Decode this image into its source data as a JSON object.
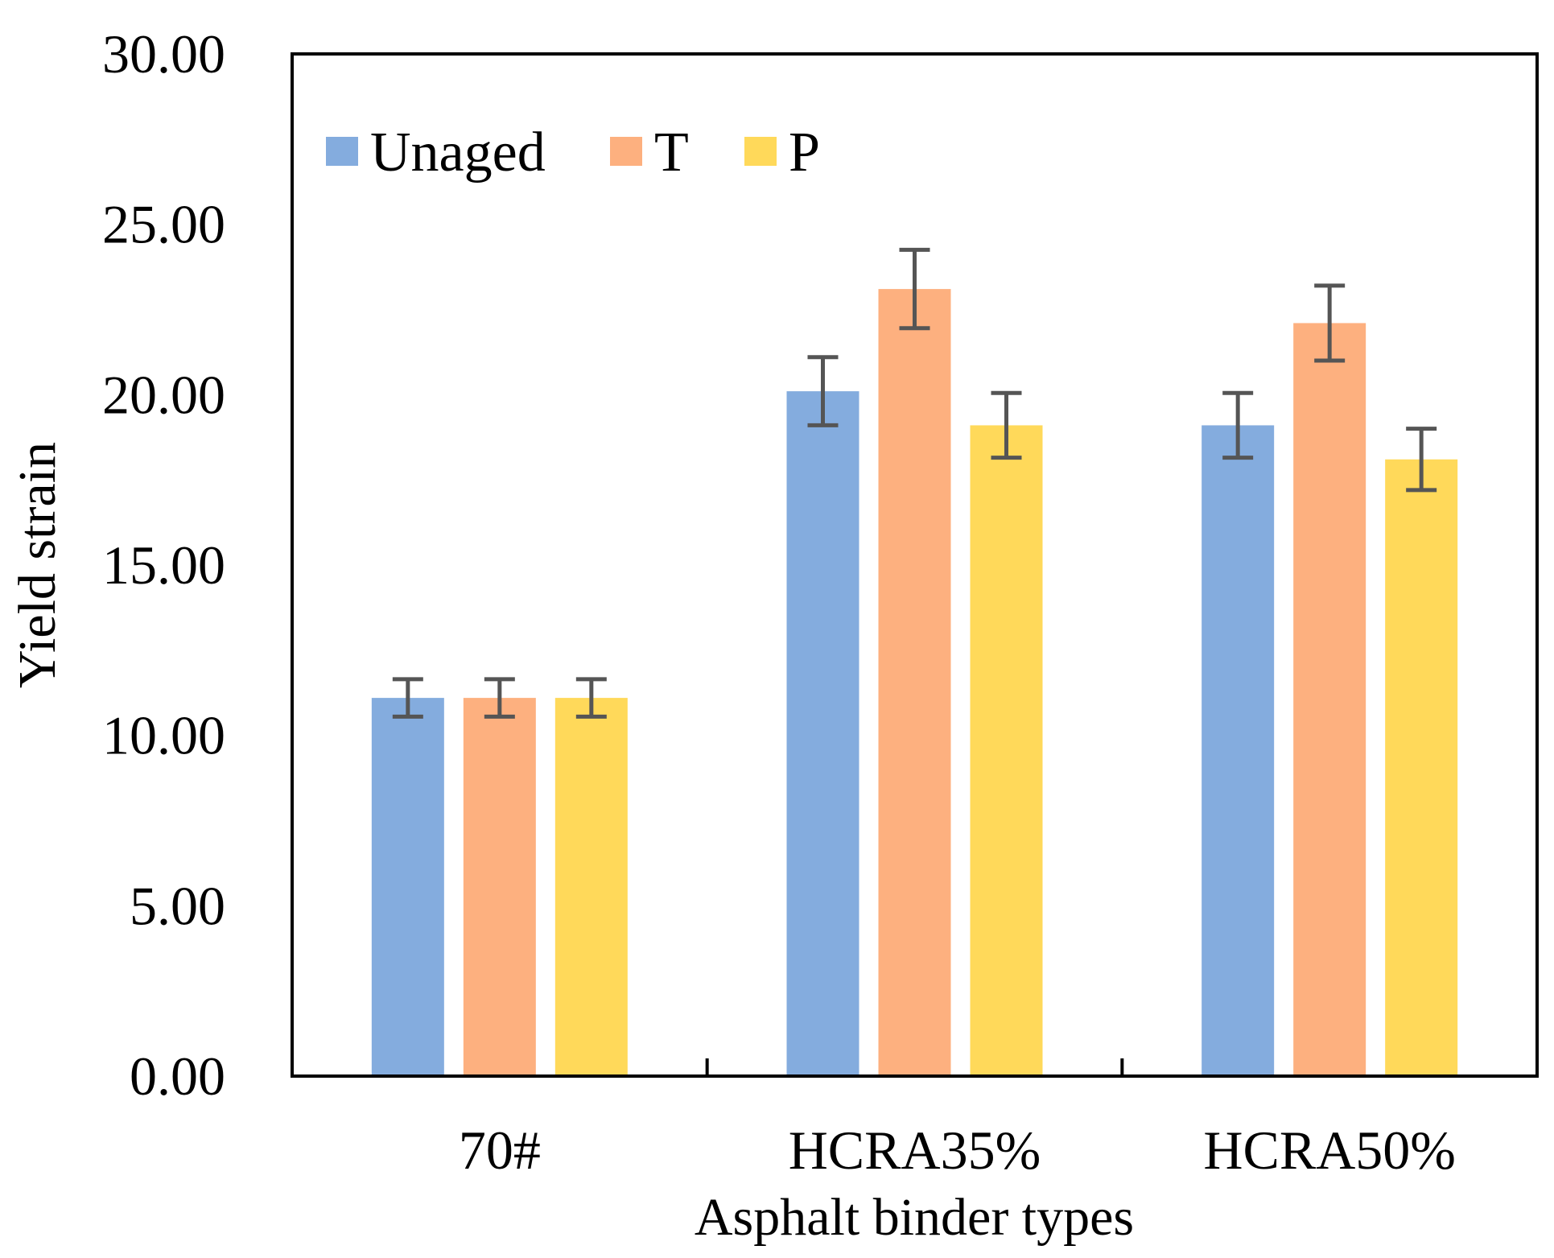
{
  "chart_data": {
    "type": "bar",
    "title": "",
    "xlabel": "Asphalt binder types",
    "ylabel": "Yield strain",
    "categories": [
      "70#",
      "HCRA35%",
      "HCRA50%"
    ],
    "ylim": [
      0,
      30
    ],
    "yticks": [
      "0.00",
      "5.00",
      "10.00",
      "15.00",
      "20.00",
      "25.00",
      "30.00"
    ],
    "legend_position": "top-left",
    "grid": false,
    "series": [
      {
        "name": "Unaged",
        "color": "#84ACDE",
        "values": [
          11.1,
          20.1,
          19.1
        ],
        "errors": [
          0.55,
          1.0,
          0.95
        ]
      },
      {
        "name": "T",
        "color": "#FDB07F",
        "values": [
          11.1,
          23.1,
          22.1
        ],
        "errors": [
          0.55,
          1.15,
          1.1
        ]
      },
      {
        "name": "P",
        "color": "#FFD95A",
        "values": [
          11.1,
          19.1,
          18.1
        ],
        "errors": [
          0.55,
          0.95,
          0.9
        ]
      }
    ],
    "error_bar_color": "#555555"
  }
}
